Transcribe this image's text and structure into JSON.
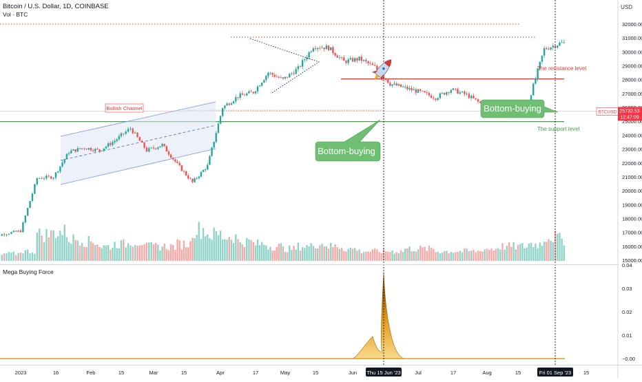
{
  "header": {
    "title": "Bitcoin / U.S. Dollar, 1D, COINBASE",
    "volume_label": "Vol · BTC",
    "indicator_label": "Mega Buying Force",
    "currency": "USD"
  },
  "price_badge": {
    "symbol": "BTCUSD",
    "price": "25732.53",
    "countdown": "12:47:09"
  },
  "crosshair": {
    "date_label_1": "Thu 15 Jun '23",
    "date_label_2": "Fri 01 Sep '23"
  },
  "annotations": {
    "bullish_channel": "Bullish Channel",
    "resistance": "The resistance level",
    "support": "The support level",
    "bottom_buying_1": "Bottom-buying",
    "bottom_buying_2": "Bottom-buying",
    "rocket_icon": "rocket-icon"
  },
  "colors": {
    "up": "#26a69a",
    "down": "#ef5350",
    "up_vol": "#8fd3c8",
    "down_vol": "#f7a9a7",
    "resistance": "#e53935",
    "support": "#43a047",
    "indicator": "#e39a1c",
    "callout": "#6fbf73",
    "badge": "#f23645"
  },
  "chart_data": [
    {
      "type": "candlestick",
      "title": "Bitcoin / U.S. Dollar, 1D, COINBASE",
      "x_ticks": [
        "2023",
        "16",
        "Feb",
        "15",
        "Mar",
        "15",
        "Apr",
        "17",
        "May",
        "15",
        "Jun",
        "Thu 15 Jun '23",
        "Jul",
        "17",
        "Aug",
        "15",
        "Fri 01 Sep '23",
        "15"
      ],
      "y_ticks": [
        15000,
        16000,
        17000,
        18000,
        19000,
        20000,
        21000,
        22000,
        23000,
        24000,
        25000,
        26000,
        27000,
        28000,
        29000,
        30000,
        31000,
        32000
      ],
      "ylim": [
        14900,
        32400
      ],
      "resistance_level": 28050,
      "support_level": 24980,
      "last_price": 25732.53,
      "closes_weekly": [
        16600,
        16900,
        17100,
        20900,
        21000,
        22800,
        23100,
        22900,
        23600,
        24500,
        22900,
        23300,
        21900,
        20600,
        21800,
        26000,
        26800,
        27100,
        28500,
        28000,
        28800,
        30400,
        30300,
        29300,
        29500,
        28900,
        27700,
        27400,
        27100,
        26700,
        27300,
        26900,
        26200,
        25900,
        25500,
        26500,
        30200,
        30600,
        30800,
        30400,
        30300,
        30100,
        29900,
        29200,
        29300,
        29200,
        29400,
        26100,
        26000,
        27700,
        25900,
        25730
      ],
      "x_dates_weekly_start": "2023-01-01",
      "volume_levels_weekly": [
        0.1,
        0.15,
        0.2,
        0.55,
        0.6,
        0.45,
        0.4,
        0.3,
        0.35,
        0.4,
        0.3,
        0.3,
        0.35,
        0.65,
        0.55,
        0.5,
        0.4,
        0.35,
        0.3,
        0.25,
        0.3,
        0.35,
        0.3,
        0.25,
        0.2,
        0.2,
        0.2,
        0.25,
        0.25,
        0.2,
        0.2,
        0.2,
        0.25,
        0.3,
        0.3,
        0.35,
        0.5,
        0.45,
        0.35,
        0.3,
        0.3,
        0.25,
        0.2,
        0.15,
        0.15,
        0.15,
        0.15,
        0.45,
        0.3,
        0.3,
        0.2,
        0.1
      ]
    },
    {
      "type": "area",
      "title": "Mega Buying Force",
      "y_ticks": [
        0.0,
        0.01,
        0.02,
        0.03,
        0.04
      ],
      "ylim": [
        -0.001,
        0.0405
      ],
      "baseline": 0,
      "peaks": [
        {
          "date": "2023-06-10",
          "value": 0.0095
        },
        {
          "date": "2023-06-15",
          "value": 0.037
        }
      ]
    }
  ]
}
